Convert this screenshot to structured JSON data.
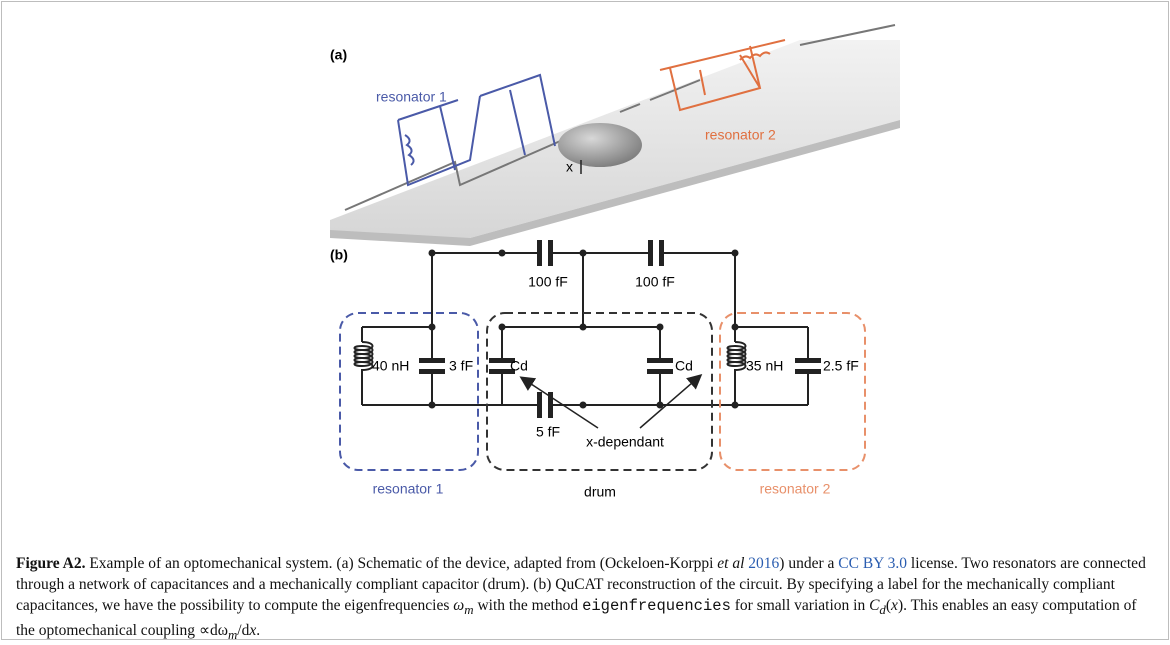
{
  "figure": {
    "panel_a": {
      "label": "(a)",
      "resonator_1": "resonator 1",
      "resonator_2": "resonator 2",
      "x_label": "x"
    },
    "panel_b": {
      "label": "(b)",
      "cap_top_1": "100 fF",
      "cap_top_2": "100 fF",
      "inductor_1": "40 nH",
      "cap_1": "3 fF",
      "cd_left": "Cd",
      "cd_right": "Cd",
      "inductor_2": "35 nH",
      "cap_2": "2.5 fF",
      "cap_bottom": "5 fF",
      "x_dependant": "x-dependant",
      "resonator_1": "resonator 1",
      "resonator_2": "resonator 2",
      "drum": "drum"
    }
  },
  "caption": {
    "parts": [
      "Figure A2.",
      "Example of an optomechanical system. (a) Schematic of the device, adapted from (Ockeloen-Korppi",
      "et al",
      "2016",
      ") under a",
      "CC BY 3.0",
      "license. Two resonators are connected through a network of capacitances and a mechanically compliant capacitor (drum). (b) QuCAT reconstruction of the circuit. By specifying a label for the mechanically compliant capacitances, we have the possibility to compute the eigenfrequencies",
      "ω",
      "m",
      "with the method",
      "eigenfrequencies",
      "for small variation in",
      "C",
      "d",
      "(",
      "x",
      "). This enables an easy computation of the optomechanical coupling",
      "∝dω",
      "m",
      "/d",
      "x",
      "."
    ]
  }
}
